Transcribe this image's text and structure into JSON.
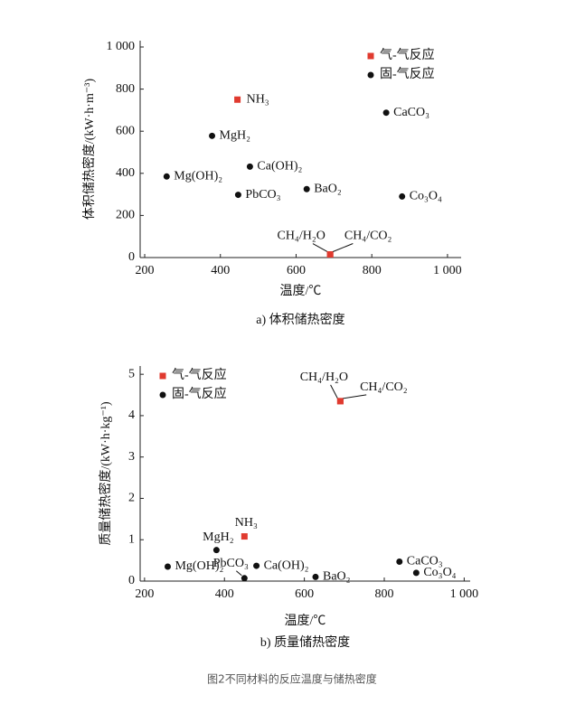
{
  "chart_data": [
    {
      "type": "scatter",
      "subtitle": "a) 体积储热密度",
      "xlabel": "温度/℃",
      "ylabel": "体积储热密度/(kW·h·m⁻³)",
      "xlim": [
        188,
        1036
      ],
      "ylim": [
        0,
        1030
      ],
      "xticks": [
        200,
        400,
        600,
        800,
        {
          "value": 1000,
          "label": "1 000"
        }
      ],
      "yticks": [
        0,
        200,
        400,
        600,
        800,
        {
          "value": 1000,
          "label": "1 000"
        }
      ],
      "legend": "upper right",
      "series": [
        {
          "name": "气-气反应",
          "color": "#e03a2f",
          "marker": "square",
          "x": [
            445,
            690,
            690
          ],
          "values": [
            750,
            15,
            15
          ],
          "labels": [
            "NH₃",
            "CH₄/H₂O",
            "CH₄/CO₂"
          ]
        },
        {
          "name": "固-气反应",
          "color": "#111111",
          "marker": "circle",
          "x": [
            258,
            378,
            478,
            447,
            628,
            838,
            880
          ],
          "values": [
            385,
            578,
            432,
            298,
            325,
            688,
            290
          ],
          "labels": [
            "Mg(OH)₂",
            "MgH₂",
            "Ca(OH)₂",
            "PbCO₃",
            "BaO₂",
            "CaCO₃",
            "Co₃O₄"
          ]
        }
      ]
    },
    {
      "type": "scatter",
      "subtitle": "b) 质量储热密度",
      "xlabel": "温度/℃",
      "ylabel": "质量储热密度/(kW·h·kg⁻¹)",
      "xlim": [
        189,
        1015
      ],
      "ylim": [
        0,
        5.2
      ],
      "xticks": [
        200,
        400,
        600,
        800,
        {
          "value": 1000,
          "label": "1 000"
        }
      ],
      "yticks": [
        0,
        1,
        2,
        3,
        4,
        5
      ],
      "legend": "upper left",
      "series": [
        {
          "name": "气-气反应",
          "color": "#e03a2f",
          "marker": "square",
          "x": [
            450,
            690,
            690
          ],
          "values": [
            1.08,
            4.35,
            4.35
          ],
          "labels": [
            "NH₃",
            "CH₄/H₂O",
            "CH₄/CO₂"
          ]
        },
        {
          "name": "固-气反应",
          "color": "#111111",
          "marker": "circle",
          "x": [
            258,
            380,
            480,
            450,
            628,
            838,
            880
          ],
          "values": [
            0.35,
            0.75,
            0.37,
            0.07,
            0.1,
            0.47,
            0.2
          ],
          "labels": [
            "Mg(OH)₂",
            "MgH₂",
            "Ca(OH)₂",
            "PbCO₃",
            "BaO₂",
            "CaCO₃",
            "Co₃O₄"
          ]
        }
      ]
    }
  ],
  "caption": "图2不同材料的反应温度与储热密度"
}
